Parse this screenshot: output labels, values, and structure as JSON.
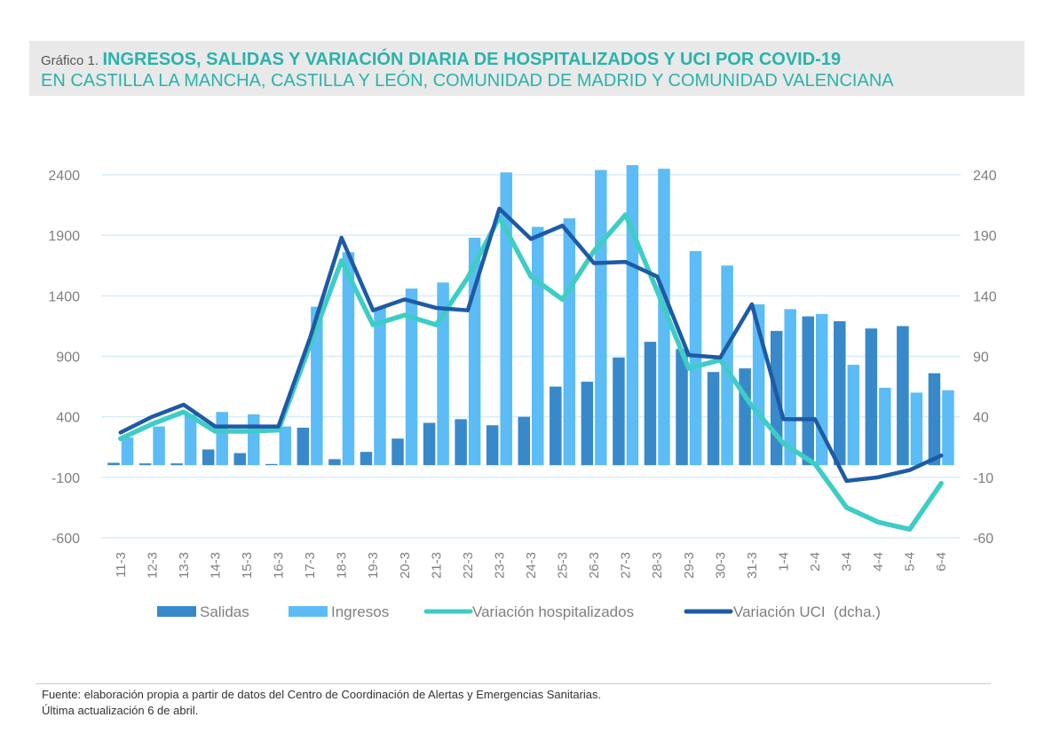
{
  "header": {
    "figure_number": "Gráfico 1.",
    "title_line1": "INGRESOS, SALIDAS Y VARIACIÓN DIARIA DE HOSPITALIZADOS Y UCI POR COVID-19",
    "title_line2": "EN CASTILLA LA MANCHA, CASTILLA Y LEÓN, COMUNIDAD DE MADRID Y COMUNIDAD VALENCIANA"
  },
  "footer": {
    "source": "Fuente: elaboración propia a partir de datos del Centro de Coordinación de Alertas y Emergencias Sanitarias.",
    "updated": "Última actualización 6 de abril."
  },
  "colors": {
    "salidas": "#3889c9",
    "ingresos": "#5cbcf5",
    "variacion_hosp": "#3ecdc6",
    "variacion_uci": "#1e5aa5",
    "grid": "#d8eef8",
    "axis": "#7f7f7f"
  },
  "chart_data": {
    "type": "bar",
    "categories": [
      "11-3",
      "12-3",
      "13-3",
      "14-3",
      "15-3",
      "16-3",
      "17-3",
      "18-3",
      "19-3",
      "20-3",
      "21-3",
      "22-3",
      "23-3",
      "24-3",
      "25-3",
      "26-3",
      "27-3",
      "28-3",
      "29-3",
      "30-3",
      "31-3",
      "1-4",
      "2-4",
      "3-4",
      "4-4",
      "5-4",
      "6-4"
    ],
    "left_axis": {
      "ticks": [
        "2400",
        "1900",
        "1400",
        "900",
        "400",
        "-100",
        "-600"
      ],
      "ylim": [
        -600,
        2400
      ]
    },
    "right_axis": {
      "ticks": [
        "240",
        "190",
        "140",
        "90",
        "40",
        "-10",
        "-60"
      ],
      "ylim": [
        -60,
        240
      ]
    },
    "series": [
      {
        "name": "Salidas",
        "type": "bar",
        "axis": "left",
        "values": [
          20,
          15,
          15,
          130,
          100,
          10,
          310,
          50,
          110,
          220,
          350,
          380,
          330,
          400,
          650,
          690,
          890,
          1020,
          960,
          770,
          800,
          1110,
          1230,
          1190,
          1130,
          1150,
          760
        ]
      },
      {
        "name": "Ingresos",
        "type": "bar",
        "axis": "left",
        "values": [
          230,
          320,
          420,
          440,
          420,
          320,
          1310,
          1760,
          1300,
          1460,
          1510,
          1880,
          2420,
          1970,
          2040,
          2440,
          2480,
          2450,
          1770,
          1650,
          1330,
          1290,
          1250,
          830,
          640,
          600,
          620
        ]
      },
      {
        "name": "Variación hospitalizados",
        "type": "line",
        "axis": "left",
        "values": [
          220,
          340,
          440,
          280,
          280,
          290,
          990,
          1690,
          1160,
          1240,
          1160,
          1550,
          2050,
          1560,
          1370,
          1770,
          2070,
          1440,
          800,
          870,
          490,
          180,
          10,
          -350,
          -470,
          -530,
          -150
        ]
      },
      {
        "name": "Variación UCI  (dcha.)",
        "type": "line",
        "axis": "right",
        "values": [
          27,
          40,
          50,
          32,
          32,
          32,
          105,
          188,
          128,
          137,
          130,
          128,
          212,
          187,
          198,
          167,
          168,
          156,
          91,
          89,
          133,
          38,
          38,
          -13,
          -10,
          -4,
          8
        ]
      }
    ]
  }
}
